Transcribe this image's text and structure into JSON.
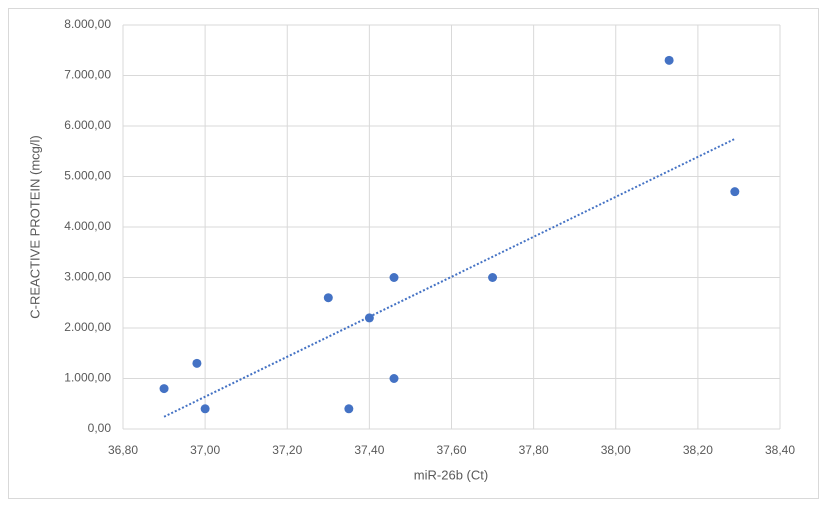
{
  "chart_data": {
    "type": "scatter",
    "x_label": "miR-26b (Ct)",
    "y_label": "C-REACTIVE PROTEIN (mcg/l)",
    "series": [
      {
        "color": "#4472c4",
        "x": [
          36.9,
          36.98,
          37.0,
          37.3,
          37.35,
          37.4,
          37.46,
          37.46,
          37.7,
          38.13,
          38.29
        ],
        "values": [
          800,
          1300,
          400,
          2600,
          400,
          2200,
          3000,
          1000,
          3000,
          7300,
          4700
        ]
      }
    ],
    "trendline": "linear",
    "xlim": [
      36.8,
      38.4
    ],
    "xticks": [
      {
        "value": 36.8,
        "label": "36,80"
      },
      {
        "value": 37.0,
        "label": "37,00"
      },
      {
        "value": 37.2,
        "label": "37,20"
      },
      {
        "value": 37.4,
        "label": "37,40"
      },
      {
        "value": 37.6,
        "label": "37,60"
      },
      {
        "value": 37.8,
        "label": "37,80"
      },
      {
        "value": 38.0,
        "label": "38,00"
      },
      {
        "value": 38.2,
        "label": "38,20"
      },
      {
        "value": 38.4,
        "label": "38,40"
      }
    ],
    "ylim": [
      0,
      8000
    ],
    "yticks": [
      {
        "value": 0,
        "label": "0,00"
      },
      {
        "value": 1000,
        "label": "1.000,00"
      },
      {
        "value": 2000,
        "label": "2.000,00"
      },
      {
        "value": 3000,
        "label": "3.000,00"
      },
      {
        "value": 4000,
        "label": "4.000,00"
      },
      {
        "value": 5000,
        "label": "5.000,00"
      },
      {
        "value": 6000,
        "label": "6.000,00"
      },
      {
        "value": 7000,
        "label": "7.000,00"
      },
      {
        "value": 8000,
        "label": "8.000,00"
      }
    ],
    "grid": true
  }
}
